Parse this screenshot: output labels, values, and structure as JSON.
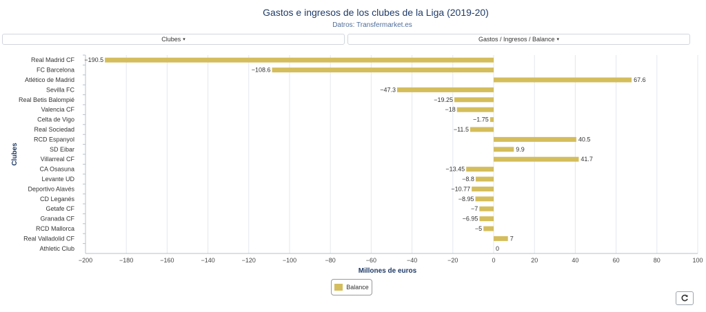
{
  "header": {
    "title": "Gastos e ingresos de los clubes de la Liga (2019-20)",
    "subtitle": "Datros: Transfermarket.es"
  },
  "controls": {
    "clubs_dropdown": "Clubes",
    "metric_dropdown": "Gastos / Ingresos / Balance",
    "caret": "▾",
    "refresh_icon": "refresh-icon"
  },
  "colors": {
    "bar": "#d4bd5c",
    "grid": "#e3e7ec",
    "axis_title": "#1f3b68"
  },
  "chart_data": {
    "type": "bar",
    "orientation": "horizontal",
    "categories": [
      "Real Madrid CF",
      "FC Barcelona",
      "Atlético de Madrid",
      "Sevilla FC",
      "Real Betis Balompié",
      "Valencia CF",
      "Celta de Vigo",
      "Real Sociedad",
      "RCD Espanyol",
      "SD Eibar",
      "Villarreal CF",
      "CA Osasuna",
      "Levante UD",
      "Deportivo Alavés",
      "CD Leganés",
      "Getafe CF",
      "Granada CF",
      "RCD Mallorca",
      "Real Valladolid CF",
      "Athletic Club"
    ],
    "series": [
      {
        "name": "Balance",
        "values": [
          -190.5,
          -108.6,
          67.6,
          -47.3,
          -19.25,
          -18,
          -1.75,
          -11.5,
          40.5,
          9.9,
          41.7,
          -13.45,
          -8.8,
          -10.77,
          -8.95,
          -7,
          -6.95,
          -5,
          7,
          0
        ]
      }
    ],
    "value_labels": [
      "−190.5",
      "−108.6",
      "67.6",
      "−47.3",
      "−19.25",
      "−18",
      "−1.75",
      "−11.5",
      "40.5",
      "9.9",
      "41.7",
      "−13.45",
      "−8.8",
      "−10.77",
      "−8.95",
      "−7",
      "−6.95",
      "−5",
      "7",
      "0"
    ],
    "xlabel": "Millones de euros",
    "ylabel": "Clubes",
    "xlim": [
      -200,
      100
    ],
    "xticks": [
      -200,
      -180,
      -160,
      -140,
      -120,
      -100,
      -80,
      -60,
      -40,
      -20,
      0,
      20,
      40,
      60,
      80,
      100
    ],
    "xtick_labels": [
      "−200",
      "−180",
      "−160",
      "−140",
      "−120",
      "−100",
      "−80",
      "−60",
      "−40",
      "−20",
      "0",
      "20",
      "40",
      "60",
      "80",
      "100"
    ],
    "grid": true,
    "legend": "bottom-center"
  }
}
